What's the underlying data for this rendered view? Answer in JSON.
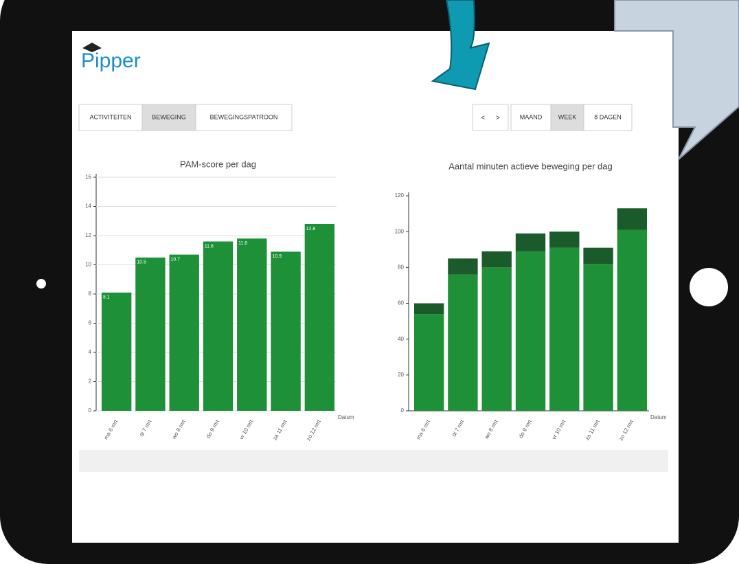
{
  "app": {
    "logo": "Pipper",
    "tabs": [
      "ACTIVITEITEN",
      "BEWEGING",
      "BEWEGINGSPATROON"
    ],
    "nav": [
      "<",
      ">"
    ],
    "periods": [
      "MAAND",
      "WEEK",
      "8 DAGEN"
    ]
  },
  "chart_data": [
    {
      "type": "bar",
      "title": "PAM-score per dag",
      "x_label": "Datum",
      "categories": [
        "ma 6 mrt",
        "di 7 mrt",
        "wo 8 mrt",
        "do 9 mrt",
        "vr 10 mrt",
        "za 11 mrt",
        "zo 12 mrt"
      ],
      "values": [
        8.1,
        10.5,
        10.7,
        11.6,
        11.8,
        10.9,
        12.8
      ],
      "color": "#1e9038",
      "value_labels_shown": true,
      "ylim": [
        0,
        16
      ],
      "yticks": [
        0,
        2,
        4,
        6,
        8,
        10,
        12,
        14,
        16
      ],
      "grid": true
    },
    {
      "type": "stacked_bar",
      "title": "Aantal minuten actieve beweging per dag",
      "x_label": "Datum",
      "categories": [
        "ma 6 mrt",
        "di 7 mrt",
        "wo 8 mrt",
        "do 9 mrt",
        "vr 10 mrt",
        "za 11 mrt",
        "zo 12 mrt"
      ],
      "series": [
        {
          "color": "#1e9038",
          "values": [
            54,
            76,
            80,
            89,
            91,
            82,
            101
          ]
        },
        {
          "color": "#1b5a2b",
          "values": [
            6,
            9,
            9,
            10,
            9,
            9,
            12
          ]
        }
      ],
      "ylim": [
        0,
        120
      ],
      "yticks": [
        0,
        20,
        40,
        60,
        80,
        100,
        120
      ],
      "grid": false
    }
  ]
}
